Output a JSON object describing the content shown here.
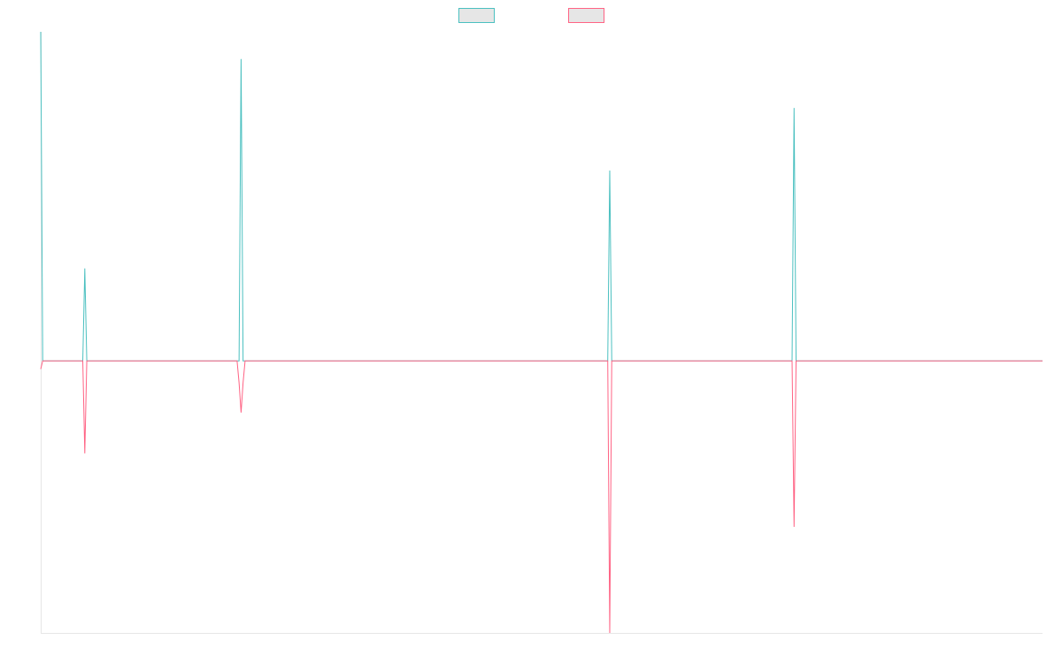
{
  "colors": {
    "series_a": "#4bc0c0",
    "series_b": "#ff6384",
    "legend_fill": "#e6e6e6",
    "axis": "#e6e6e6"
  },
  "chart_data": {
    "type": "line",
    "title": "",
    "xlabel": "",
    "ylabel": "",
    "grid": false,
    "legend": "top",
    "xlim": [
      0,
      1000
    ],
    "ylim": [
      -100,
      121
    ],
    "series": [
      {
        "name": "",
        "color": "#4bc0c0",
        "x": [
          0,
          2,
          40,
          42,
          44,
          46,
          48,
          196,
          198,
          200,
          202,
          204,
          564,
          566,
          568,
          570,
          572,
          748,
          750,
          752,
          754,
          756,
          1000
        ],
        "y": [
          121,
          0,
          0,
          0,
          34,
          0,
          0,
          0,
          0,
          111,
          0,
          0,
          0,
          0,
          70,
          0,
          0,
          0,
          0,
          93,
          0,
          0,
          0
        ]
      },
      {
        "name": "",
        "color": "#ff6384",
        "x": [
          0,
          2,
          40,
          42,
          44,
          46,
          48,
          196,
          198,
          200,
          202,
          204,
          564,
          566,
          568,
          570,
          572,
          748,
          750,
          752,
          754,
          756,
          1000
        ],
        "y": [
          -3,
          0,
          0,
          0,
          -34,
          0,
          0,
          0,
          -8,
          -19,
          -8,
          0,
          0,
          0,
          -100,
          0,
          0,
          0,
          0,
          -61,
          0,
          0,
          0
        ]
      }
    ]
  }
}
